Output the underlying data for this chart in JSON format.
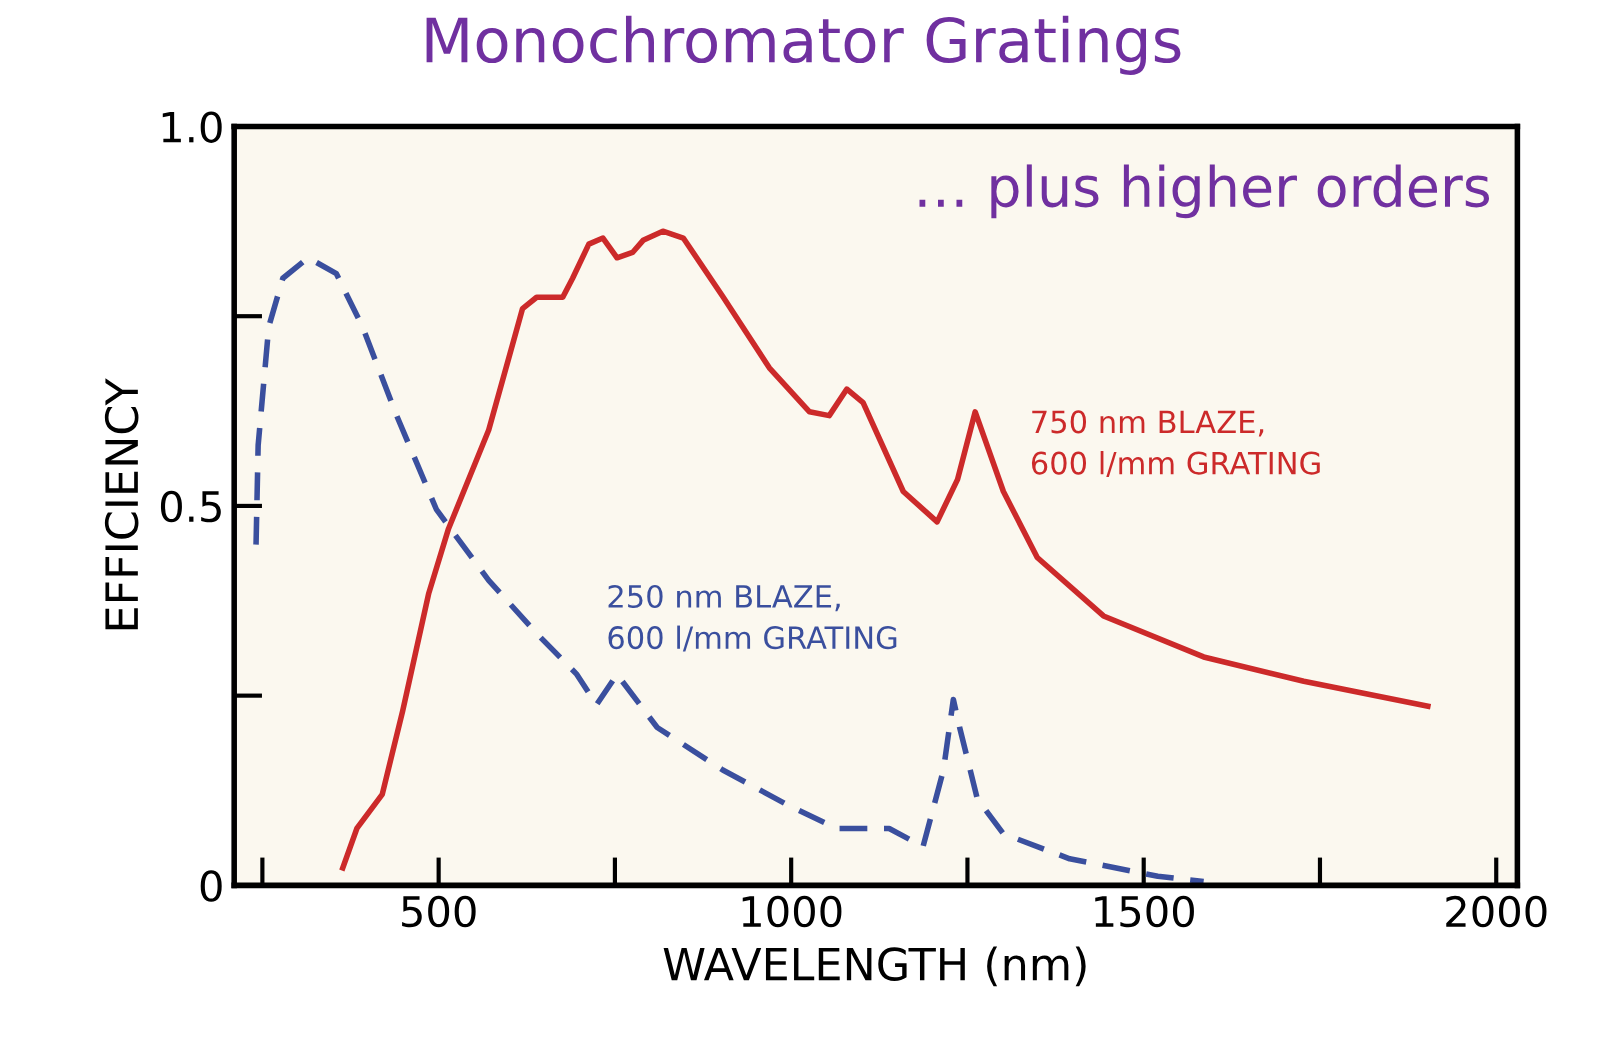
{
  "chart_data": {
    "type": "line",
    "title": "Monochromator Gratings",
    "xlabel": "WAVELENGTH (nm)",
    "ylabel": "EFFICIENCY",
    "annotations": [
      "… plus higher orders"
    ],
    "x": [
      364,
      384,
      420,
      449,
      486,
      514,
      571,
      619,
      639,
      676,
      690,
      713,
      733,
      753,
      775,
      790,
      818,
      847,
      903,
      969,
      1026,
      1054,
      1079,
      1102,
      1159,
      1207,
      1236,
      1261,
      1301,
      1349,
      1443,
      1585,
      1727,
      1903
    ],
    "series": [
      {
        "name": "750 nm BLAZE,\n600 l/mm GRATING",
        "color": "#cc2a2a",
        "line_style": "solid",
        "values": [
          0.023,
          0.075,
          0.12,
          0.23,
          0.385,
          0.47,
          0.6,
          0.76,
          0.775,
          0.775,
          0.8,
          0.845,
          0.853,
          0.827,
          0.834,
          0.85,
          0.862,
          0.853,
          0.776,
          0.682,
          0.624,
          0.619,
          0.654,
          0.636,
          0.519,
          0.479,
          0.535,
          0.624,
          0.519,
          0.432,
          0.355,
          0.301,
          0.269,
          0.236
        ]
      },
      {
        "name": "250 nm BLAZE,\n600 l/mm GRATING",
        "color": "#3a4f9e",
        "line_style": "dashed",
        "x": [
          241,
          244,
          259,
          279,
          315,
          355,
          392,
          440,
          497,
          571,
          639,
          696,
          724,
          753,
          810,
          903,
          997,
          1065,
          1139,
          1187,
          1216,
          1230,
          1239,
          1264,
          1301,
          1395,
          1520,
          1585
        ],
        "values": [
          0.449,
          0.58,
          0.736,
          0.8,
          0.827,
          0.806,
          0.736,
          0.62,
          0.495,
          0.402,
          0.332,
          0.278,
          0.238,
          0.278,
          0.208,
          0.152,
          0.105,
          0.075,
          0.075,
          0.051,
          0.152,
          0.245,
          0.208,
          0.114,
          0.068,
          0.035,
          0.012,
          0.005
        ]
      }
    ],
    "xlim": [
      210,
      2030
    ],
    "ylim": [
      0,
      1.0
    ],
    "xticks": [
      {
        "value": 250,
        "label": null
      },
      500,
      {
        "value": 750,
        "label": null
      },
      1000,
      {
        "value": 1250,
        "label": null
      },
      1500,
      {
        "value": 1750,
        "label": null
      },
      2000
    ],
    "yticks": [
      {
        "value": 0,
        "label": "0"
      },
      {
        "value": 0.25,
        "label": null
      },
      0.5,
      {
        "value": 0.75,
        "label": null
      },
      {
        "value": 1.0,
        "label": "1.0"
      }
    ],
    "grid": false,
    "legend": false
  }
}
